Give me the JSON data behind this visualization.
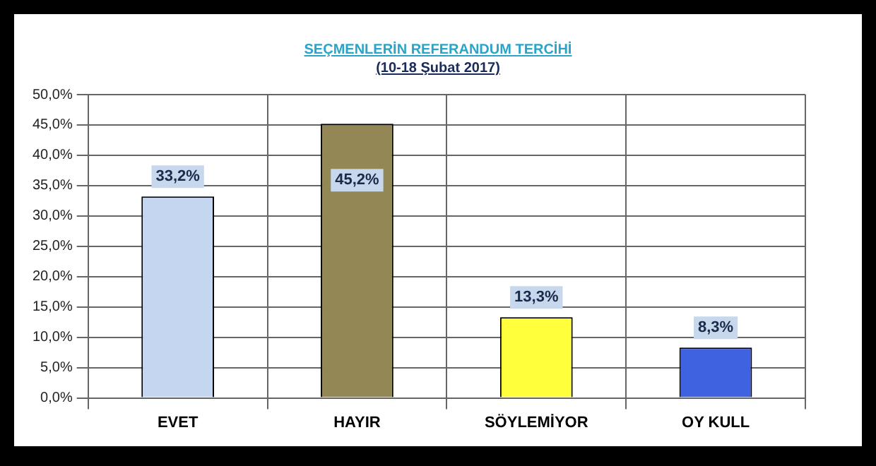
{
  "chart_data": {
    "type": "bar",
    "title": "SEÇMENLERİN REFERANDUM TERCİHİ",
    "subtitle": "(10-18 Şubat 2017)",
    "categories": [
      "EVET",
      "HAYIR",
      "SÖYLEMİYOR",
      "OY KULL"
    ],
    "values": [
      33.2,
      45.2,
      13.3,
      8.3
    ],
    "colors": [
      "#c4d6f0",
      "#938755",
      "#ffff3c",
      "#3f63e0"
    ],
    "value_labels": [
      "33,2%",
      "45,2%",
      "13,3%",
      "8,3%"
    ],
    "ylim": [
      0,
      50
    ],
    "yticks": [
      {
        "value": 0,
        "label": "0,0%"
      },
      {
        "value": 5,
        "label": "5,0%"
      },
      {
        "value": 10,
        "label": "10,0%"
      },
      {
        "value": 15,
        "label": "15,0%"
      },
      {
        "value": 20,
        "label": "20,0%"
      },
      {
        "value": 25,
        "label": "25,0%"
      },
      {
        "value": 30,
        "label": "30,0%"
      },
      {
        "value": 35,
        "label": "35,0%"
      },
      {
        "value": 40,
        "label": "40,0%"
      },
      {
        "value": 45,
        "label": "45,0%"
      },
      {
        "value": 50,
        "label": "50,0%"
      }
    ],
    "grid": true
  }
}
